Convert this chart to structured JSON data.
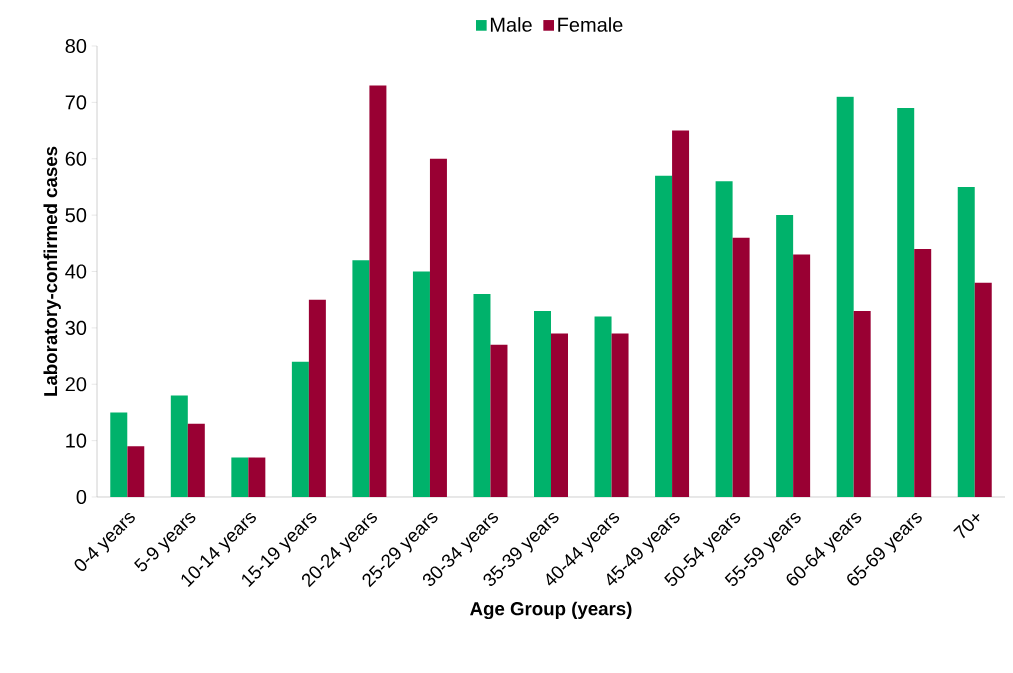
{
  "chart_data": {
    "type": "bar",
    "xlabel": "Age Group (years)",
    "ylabel": "Laboratory-confirmed cases",
    "categories": [
      "0-4 years",
      "5-9 years",
      "10-14 years",
      "15-19 years",
      "20-24 years",
      "25-29 years",
      "30-34 years",
      "35-39 years",
      "40-44 years",
      "45-49 years",
      "50-54 years",
      "55-59 years",
      "60-64 years",
      "65-69 years",
      "70+"
    ],
    "series": [
      {
        "name": "Male",
        "color": "#00b26b",
        "values": [
          15,
          18,
          7,
          24,
          42,
          40,
          36,
          33,
          32,
          57,
          56,
          50,
          71,
          69,
          55
        ]
      },
      {
        "name": "Female",
        "color": "#990033",
        "values": [
          9,
          13,
          7,
          35,
          73,
          60,
          27,
          29,
          29,
          65,
          46,
          43,
          33,
          44,
          38
        ]
      }
    ],
    "ylim": [
      0,
      80
    ],
    "yticks": [
      0,
      10,
      20,
      30,
      40,
      50,
      60,
      70,
      80
    ],
    "grid": false,
    "legend": "top"
  }
}
